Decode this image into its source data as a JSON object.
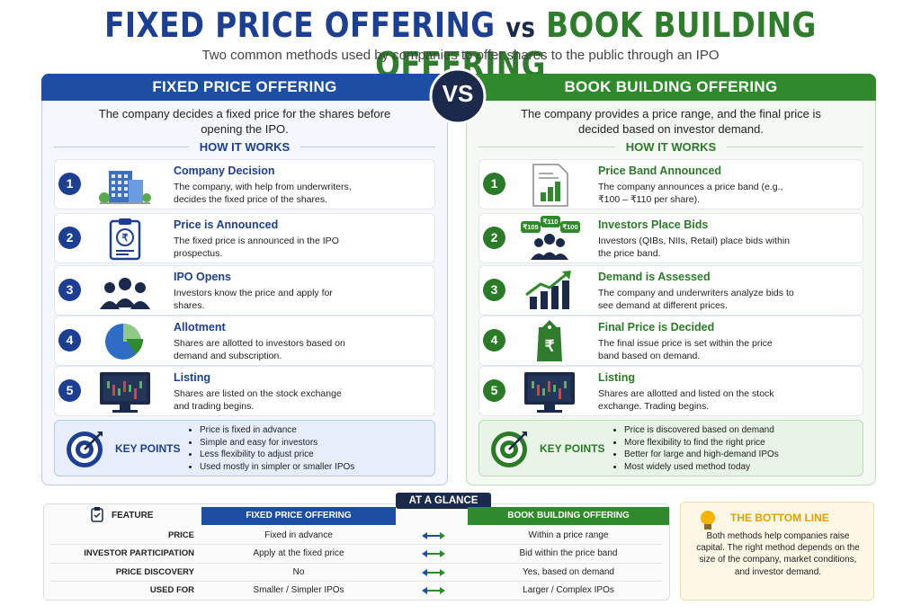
{
  "header": {
    "title_left": "FIXED PRICE OFFERING",
    "title_vs": "vs",
    "title_right": "BOOK BUILDING OFFERING",
    "subtitle": "Two common methods used by companies to offer shares to the public through an IPO"
  },
  "vs_badge": "VS",
  "panels": [
    {
      "title": "FIXED PRICE OFFERING",
      "description": "The company decides a fixed price for the shares before opening the IPO.",
      "how_it_works": "HOW IT WORKS",
      "steps": [
        {
          "number": "1",
          "title": "Company Decision",
          "text": "The company, with help from underwriters, decides the fixed price of the shares."
        },
        {
          "number": "2",
          "title": "Price is Announced",
          "text": "The fixed price is announced in the IPO prospectus.",
          "icon_labels": [
            "₹"
          ]
        },
        {
          "number": "3",
          "title": "IPO Opens",
          "text": "Investors know the price and apply for shares."
        },
        {
          "number": "4",
          "title": "Allotment",
          "text": "Shares are allotted to investors based on demand and subscription."
        },
        {
          "number": "5",
          "title": "Listing",
          "text": "Shares are listed on the stock exchange and trading begins."
        }
      ],
      "key_points_label": "KEY POINTS",
      "key_points": [
        "Price is fixed in advance",
        "Simple and easy for investors",
        "Less flexibility to adjust price",
        "Used mostly in simpler or smaller IPOs"
      ]
    },
    {
      "title": "BOOK BUILDING OFFERING",
      "description": "The company provides a price range, and the final price is decided based on investor demand.",
      "how_it_works": "HOW IT WORKS",
      "steps": [
        {
          "number": "1",
          "title": "Price Band Announced",
          "text": "The company announces a price band (e.g., ₹100 – ₹110 per share)."
        },
        {
          "number": "2",
          "title": "Investors Place Bids",
          "text": "Investors (QIBs, NIIs, Retail) place bids within the price band.",
          "icon_labels": [
            "₹105",
            "₹110",
            "₹100"
          ]
        },
        {
          "number": "3",
          "title": "Demand is Assessed",
          "text": "The company and underwriters analyze bids to see demand at different prices."
        },
        {
          "number": "4",
          "title": "Final Price is Decided",
          "text": "The final issue price is set within the price band based on demand.",
          "icon_labels": [
            "₹"
          ]
        },
        {
          "number": "5",
          "title": "Listing",
          "text": "Shares are allotted and listed on the stock exchange. Trading begins."
        }
      ],
      "key_points_label": "KEY POINTS",
      "key_points": [
        "Price is discovered based on demand",
        "More flexibility to find the right price",
        "Better for large and high-demand IPOs",
        "Most widely used method today"
      ]
    }
  ],
  "at_a_glance": {
    "label": "AT A GLANCE",
    "header": [
      "FEATURE",
      "FIXED PRICE OFFERING",
      "BOOK BUILDING OFFERING"
    ],
    "rows": [
      [
        "PRICE",
        "Fixed in advance",
        "Within a price range"
      ],
      [
        "INVESTOR PARTICIPATION",
        "Apply at the fixed price",
        "Bid within the price band"
      ],
      [
        "PRICE DISCOVERY",
        "No",
        "Yes, based on demand"
      ],
      [
        "USED FOR",
        "Smaller / Simpler IPOs",
        "Larger / Complex IPOs"
      ]
    ]
  },
  "bottom_line": {
    "title": "THE BOTTOM LINE",
    "text": "Both methods help companies raise capital. The right method depends on the size of the company, market conditions, and investor demand."
  }
}
